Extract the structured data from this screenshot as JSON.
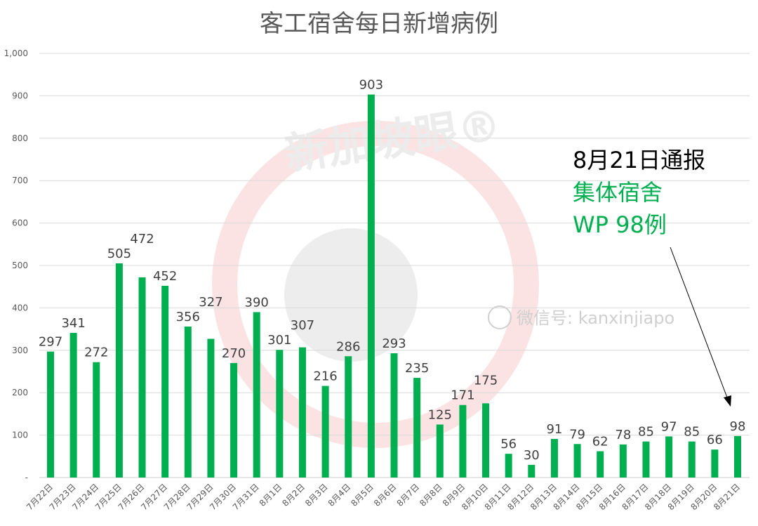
{
  "chart_data": {
    "type": "bar",
    "title": "客工宿舍每日新增病例",
    "xlabel": "",
    "ylabel": "",
    "ylim": [
      0,
      1000
    ],
    "yticks": [
      0,
      100,
      200,
      300,
      400,
      500,
      600,
      700,
      800,
      900,
      1000
    ],
    "ytick_labels": [
      "-",
      "100",
      "200",
      "300",
      "400",
      "500",
      "600",
      "700",
      "800",
      "900",
      "1,000"
    ],
    "grid": true,
    "categories": [
      "7月22日",
      "7月23日",
      "7月24日",
      "7月25日",
      "7月26日",
      "7月27日",
      "7月28日",
      "7月29日",
      "7月30日",
      "7月31日",
      "8月1日",
      "8月2日",
      "8月3日",
      "8月4日",
      "8月5日",
      "8月6日",
      "8月7日",
      "8月8日",
      "8月9日",
      "8月10日",
      "8月11日",
      "8月12日",
      "8月13日",
      "8月14日",
      "8月15日",
      "8月16日",
      "8月17日",
      "8月18日",
      "8月19日",
      "8月20日",
      "8月21日"
    ],
    "values": [
      297,
      341,
      272,
      505,
      472,
      452,
      356,
      327,
      270,
      390,
      301,
      307,
      216,
      286,
      903,
      293,
      235,
      125,
      171,
      175,
      56,
      30,
      91,
      79,
      62,
      78,
      85,
      97,
      85,
      66,
      98
    ],
    "bar_color": "#00B050",
    "annotation": {
      "line1": "8月21日通报",
      "line2": "集体宿舍",
      "line3": "WP 98例",
      "line1_color": "#000000",
      "line23_color": "#00B050"
    },
    "watermark_logo": "新加坡眼®",
    "watermark_wechat": "微信号: kanxinjiapo"
  }
}
